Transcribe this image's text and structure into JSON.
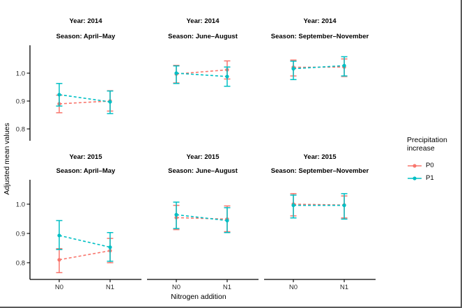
{
  "figure": {
    "y_axis_label": "Adjusted mean values",
    "x_axis_label": "Nitrogen addition"
  },
  "legend": {
    "title": "Precipitation increase",
    "items": [
      {
        "label": "P0",
        "color": "#F8766D"
      },
      {
        "label": "P1",
        "color": "#00BFC4"
      }
    ]
  },
  "chart_data": {
    "type": "line",
    "subtype": "faceted interaction plot with points, dashed connecting lines and error bars (2 facet rows x 3 facet columns)",
    "xlabel": "Nitrogen addition",
    "ylabel": "Adjusted mean values",
    "x_categories": [
      "N0",
      "N1"
    ],
    "y_ticks": [
      0.8,
      0.9,
      1.0
    ],
    "ylim": [
      0.75,
      1.1
    ],
    "grid": false,
    "legend_title": "Precipitation increase",
    "legend_position": "right",
    "series_names": [
      "P0",
      "P1"
    ],
    "series_colors": {
      "P0": "#F8766D",
      "P1": "#00BFC4"
    },
    "line_style": "dashed",
    "facet_row_labels": [
      "Year: 2014",
      "Year: 2015"
    ],
    "facet_col_labels": [
      "Season: April–May",
      "Season: June–August",
      "Season: September–November"
    ],
    "facets": [
      {
        "row_label": "Year: 2014",
        "col_label": "Season: April–May",
        "series": [
          {
            "name": "P0",
            "means": [
              0.89,
              0.9
            ],
            "lower": [
              0.858,
              0.864
            ],
            "upper": [
              0.921,
              0.937
            ]
          },
          {
            "name": "P1",
            "means": [
              0.923,
              0.897
            ],
            "lower": [
              0.882,
              0.855
            ],
            "upper": [
              0.963,
              0.936
            ]
          }
        ]
      },
      {
        "row_label": "Year: 2014",
        "col_label": "Season: June–August",
        "series": [
          {
            "name": "P0",
            "means": [
              0.997,
              1.012
            ],
            "lower": [
              0.965,
              0.979
            ],
            "upper": [
              1.028,
              1.044
            ]
          },
          {
            "name": "P1",
            "means": [
              1.0,
              0.988
            ],
            "lower": [
              0.963,
              0.953
            ],
            "upper": [
              1.026,
              1.022
            ]
          }
        ]
      },
      {
        "row_label": "Year: 2014",
        "col_label": "Season: September–November",
        "series": [
          {
            "name": "P0",
            "means": [
              1.021,
              1.022
            ],
            "lower": [
              0.99,
              0.988
            ],
            "upper": [
              1.047,
              1.051
            ]
          },
          {
            "name": "P1",
            "means": [
              1.016,
              1.027
            ],
            "lower": [
              0.977,
              0.99
            ],
            "upper": [
              1.043,
              1.059
            ]
          }
        ]
      },
      {
        "row_label": "Year: 2015",
        "col_label": "Season: April–May",
        "series": [
          {
            "name": "P0",
            "means": [
              0.81,
              0.841
            ],
            "lower": [
              0.766,
              0.8
            ],
            "upper": [
              0.848,
              0.883
            ]
          },
          {
            "name": "P1",
            "means": [
              0.893,
              0.853
            ],
            "lower": [
              0.845,
              0.805
            ],
            "upper": [
              0.944,
              0.903
            ]
          }
        ]
      },
      {
        "row_label": "Year: 2015",
        "col_label": "Season: June–August",
        "series": [
          {
            "name": "P0",
            "means": [
              0.954,
              0.949
            ],
            "lower": [
              0.913,
              0.906
            ],
            "upper": [
              0.996,
              0.994
            ]
          },
          {
            "name": "P1",
            "means": [
              0.964,
              0.944
            ],
            "lower": [
              0.917,
              0.903
            ],
            "upper": [
              1.007,
              0.988
            ]
          }
        ]
      },
      {
        "row_label": "Year: 2015",
        "col_label": "Season: September–November",
        "series": [
          {
            "name": "P0",
            "means": [
              1.0,
              0.997
            ],
            "lower": [
              0.96,
              0.953
            ],
            "upper": [
              1.036,
              1.028
            ]
          },
          {
            "name": "P1",
            "means": [
              0.996,
              0.996
            ],
            "lower": [
              0.953,
              0.949
            ],
            "upper": [
              1.031,
              1.036
            ]
          }
        ]
      }
    ]
  }
}
